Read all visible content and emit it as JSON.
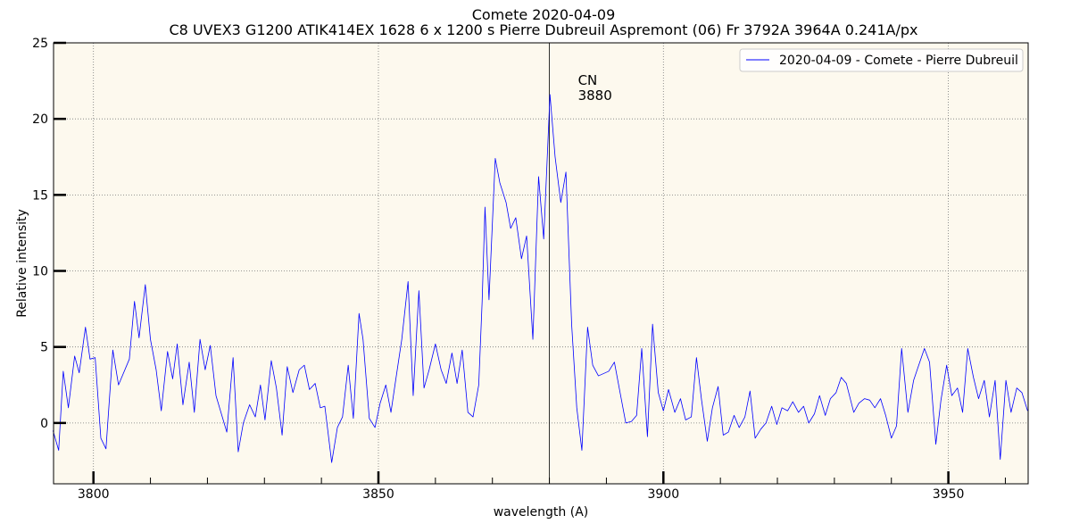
{
  "chart_data": {
    "type": "line",
    "title": "Comete 2020-04-09",
    "subtitle": "C8 UVEX3 G1200 ATIK414EX 1628 6 x 1200 s Pierre Dubreuil Aspremont (06) Fr 3792A 3964A 0.241A/px",
    "x_label": "wavelength (A)",
    "y_label": "Relative intensity",
    "xlim": [
      3793,
      3964
    ],
    "ylim": [
      -4,
      25
    ],
    "xticks": [
      3800,
      3850,
      3900,
      3950
    ],
    "xminor_ticks": [
      3810,
      3820,
      3830,
      3840,
      3860,
      3870,
      3880,
      3890,
      3910,
      3920,
      3930,
      3940,
      3960
    ],
    "yticks": [
      0,
      5,
      10,
      15,
      20,
      25
    ],
    "grid": true,
    "legend": "upper right",
    "vline": 3880,
    "annotation": [
      "CN",
      "3880"
    ],
    "x": [
      3792.9,
      3793.9,
      3794.7,
      3795.6,
      3796.7,
      3797.5,
      3798.6,
      3799.4,
      3800.3,
      3801.3,
      3802.2,
      3803.4,
      3804.4,
      3806.3,
      3807.2,
      3808.0,
      3809.1,
      3810.0,
      3811.0,
      3811.9,
      3813.0,
      3813.9,
      3814.7,
      3815.7,
      3816.8,
      3817.7,
      3818.7,
      3819.6,
      3820.5,
      3821.5,
      3823.4,
      3824.5,
      3825.4,
      3826.3,
      3827.4,
      3828.4,
      3829.3,
      3830.1,
      3831.2,
      3832.1,
      3833.1,
      3834.0,
      3835.0,
      3836.1,
      3837.0,
      3837.9,
      3838.9,
      3839.8,
      3840.6,
      3841.8,
      3842.8,
      3843.7,
      3844.7,
      3845.6,
      3846.6,
      3847.3,
      3848.4,
      3849.4,
      3850.3,
      3851.3,
      3852.2,
      3853.1,
      3854.1,
      3855.2,
      3856.1,
      3857.1,
      3858.0,
      3858.9,
      3860.0,
      3861.0,
      3861.9,
      3862.9,
      3863.8,
      3864.7,
      3865.7,
      3866.6,
      3867.6,
      3868.2,
      3868.7,
      3869.4,
      3870.5,
      3871.3,
      3872.4,
      3873.2,
      3874.1,
      3875.1,
      3876.0,
      3877.1,
      3878.1,
      3879.0,
      3880.1,
      3881.0,
      3882.0,
      3882.9,
      3883.9,
      3884.8,
      3885.7,
      3886.7,
      3887.6,
      3888.6,
      3890.4,
      3891.4,
      3892.3,
      3893.4,
      3894.4,
      3895.3,
      3896.2,
      3897.2,
      3898.1,
      3899.1,
      3900.0,
      3900.9,
      3902.0,
      3903.0,
      3903.9,
      3904.9,
      3905.8,
      3906.7,
      3907.7,
      3908.6,
      3909.6,
      3910.5,
      3911.4,
      3912.4,
      3913.3,
      3914.3,
      3915.2,
      3916.1,
      3917.1,
      3918.0,
      3919.0,
      3919.9,
      3920.8,
      3921.8,
      3922.7,
      3923.7,
      3924.6,
      3925.5,
      3926.5,
      3927.4,
      3928.4,
      3929.3,
      3930.3,
      3931.2,
      3932.1,
      3933.4,
      3934.3,
      3935.3,
      3936.2,
      3937.1,
      3938.1,
      3939.0,
      3940.0,
      3940.9,
      3941.8,
      3942.9,
      3943.9,
      3944.8,
      3945.8,
      3946.7,
      3947.8,
      3948.7,
      3949.7,
      3950.6,
      3951.6,
      3952.5,
      3953.4,
      3954.4,
      3955.3,
      3956.3,
      3957.2,
      3958.2,
      3959.1,
      3960.1,
      3961.0,
      3962.0,
      3962.9,
      3963.9
    ],
    "series": [
      {
        "name": "2020-04-09 - Comete - Pierre Dubreuil",
        "color": "#0000ff",
        "values": [
          -0.5,
          -1.8,
          3.4,
          1.0,
          4.4,
          3.3,
          6.3,
          4.2,
          4.3,
          -1,
          -1.7,
          4.8,
          2.5,
          4.2,
          8.0,
          5.6,
          9.1,
          5.5,
          3.5,
          0.8,
          4.7,
          2.9,
          5.2,
          1.2,
          4.0,
          0.7,
          5.5,
          3.5,
          5.1,
          1.8,
          -0.6,
          4.3,
          -1.9,
          0,
          1.2,
          0.4,
          2.5,
          0.2,
          4.1,
          2.3,
          -0.8,
          3.7,
          2.0,
          3.5,
          3.8,
          2.2,
          2.6,
          1.0,
          1.1,
          -2.6,
          -0.3,
          0.4,
          3.8,
          0.3,
          7.2,
          5.5,
          0.3,
          -0.3,
          1.3,
          2.5,
          0.7,
          3.0,
          5.5,
          9.3,
          1.8,
          8.7,
          2.3,
          3.5,
          5.2,
          3.5,
          2.6,
          4.6,
          2.6,
          4.8,
          0.7,
          0.4,
          2.5,
          8.0,
          14.2,
          8.1,
          17.4,
          15.8,
          14.5,
          12.8,
          13.5,
          10.8,
          12.3,
          5.5,
          16.2,
          12.1,
          21.6,
          17.5,
          14.5,
          16.5,
          6.5,
          1.0,
          -1.8,
          6.3,
          3.8,
          3.1,
          3.4,
          4.0,
          2.2,
          0.0,
          0.1,
          0.5,
          4.9,
          -0.9,
          6.5,
          2.0,
          0.8,
          2.2,
          0.7,
          1.6,
          0.2,
          0.4,
          4.3,
          1.5,
          -1.2,
          1.0,
          2.4,
          -0.8,
          -0.6,
          0.5,
          -0.3,
          0.4,
          2.1,
          -1.0,
          -0.4,
          0,
          1.1,
          -0.1,
          1.0,
          0.8,
          1.4,
          0.7,
          1.1,
          0.0,
          0.6,
          1.8,
          0.5,
          1.6,
          2.0,
          3.0,
          2.6,
          0.7,
          1.3,
          1.6,
          1.5,
          1.0,
          1.6,
          0.5,
          -1.0,
          -0.2,
          4.9,
          0.7,
          2.8,
          3.8,
          4.9,
          4.0,
          -1.4,
          1.5,
          3.8,
          1.8,
          2.3,
          0.7,
          4.9,
          3.0,
          1.6,
          2.8,
          0.4,
          2.8,
          -2.4,
          2.8,
          0.7,
          2.3,
          2.0,
          0.8
        ]
      }
    ]
  }
}
